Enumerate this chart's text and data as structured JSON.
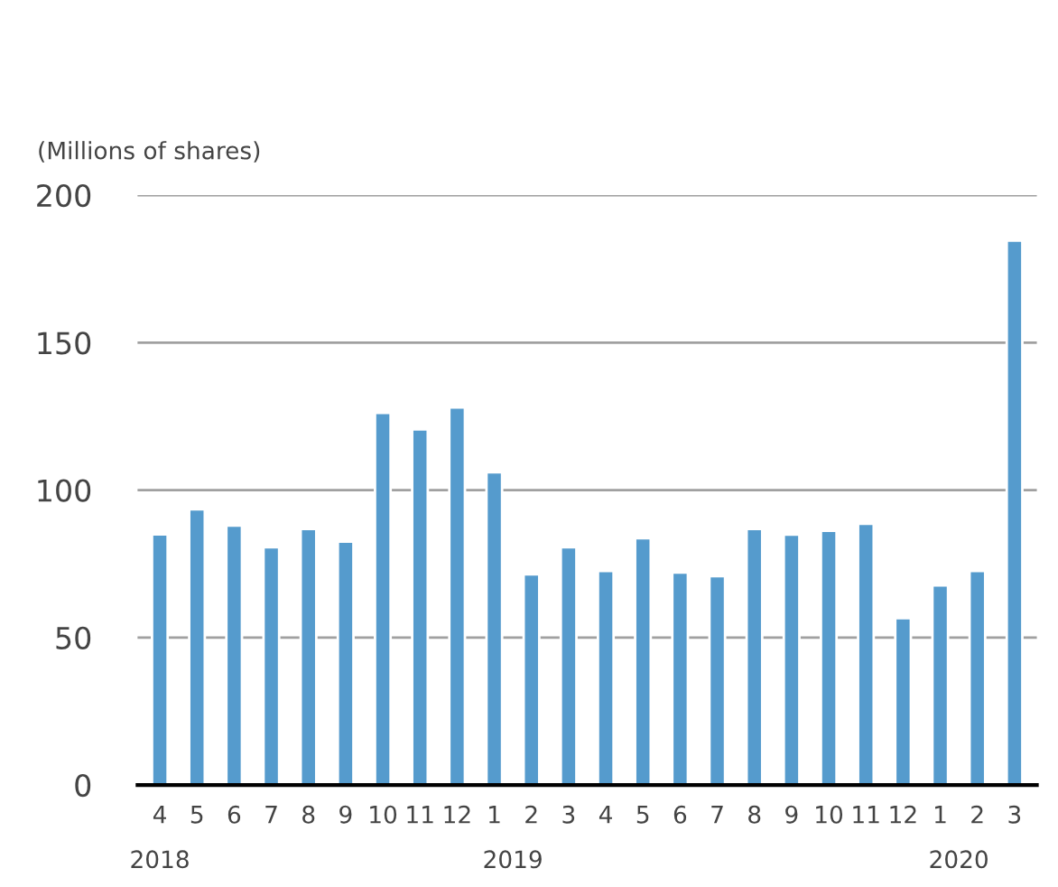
{
  "chart_data": {
    "type": "bar",
    "ylabel": "(Millions of shares)",
    "categories": [
      "4",
      "5",
      "6",
      "7",
      "8",
      "9",
      "10",
      "11",
      "12",
      "1",
      "2",
      "3",
      "4",
      "5",
      "6",
      "7",
      "8",
      "9",
      "10",
      "11",
      "12",
      "1",
      "2",
      "3"
    ],
    "values": [
      85,
      93.5,
      88,
      80.6,
      86.8,
      82.5,
      126.2,
      120.6,
      128,
      106,
      71.4,
      80.6,
      72.6,
      83.7,
      72,
      70.8,
      86.8,
      84.9,
      86.2,
      88.6,
      56.6,
      67.7,
      72.6,
      184.6
    ],
    "color": "#559bcd",
    "ylim": [
      0,
      200
    ],
    "yticks": [
      0,
      50,
      100,
      150,
      200
    ],
    "grid": "y",
    "annotations": [
      "2018",
      "2019",
      "2020"
    ]
  }
}
